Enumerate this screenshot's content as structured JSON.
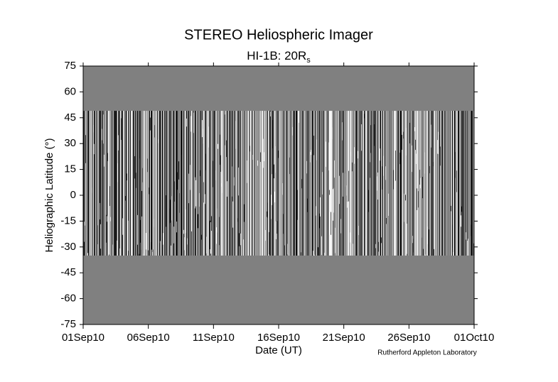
{
  "chart_data": {
    "type": "heatmap",
    "title": "STEREO Heliospheric Imager",
    "subtitle": {
      "text": "HI-1B: 20R",
      "subscript": "s"
    },
    "y_label": "Heliographic Latitude (°)",
    "x_label": "Date (UT)",
    "credit": "Rutherford Appleton Laboratory",
    "xlim": [
      "2010-09-01",
      "2010-10-01"
    ],
    "xticks": [
      {
        "value": "2010-09-01",
        "label": "01Sep10"
      },
      {
        "value": "2010-09-06",
        "label": "06Sep10"
      },
      {
        "value": "2010-09-11",
        "label": "11Sep10"
      },
      {
        "value": "2010-09-16",
        "label": "16Sep10"
      },
      {
        "value": "2010-09-21",
        "label": "21Sep10"
      },
      {
        "value": "2010-09-26",
        "label": "26Sep10"
      },
      {
        "value": "2010-10-01",
        "label": "01Oct10"
      }
    ],
    "ylim": [
      -75,
      75
    ],
    "yticks": [
      -75,
      -60,
      -45,
      -30,
      -15,
      0,
      15,
      30,
      45,
      60,
      75
    ],
    "data_ylim": [
      -35,
      49
    ],
    "background_color": "#808080"
  }
}
